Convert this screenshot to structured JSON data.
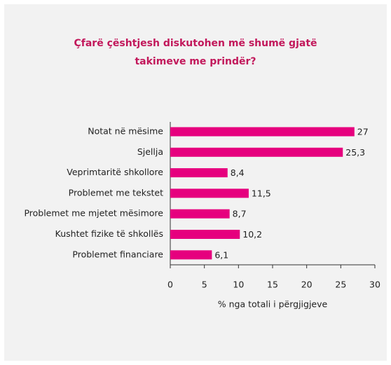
{
  "chart_data": {
    "type": "hbar",
    "title": [
      "Çfarë çështjesh diskutohen më shumë gjatë",
      "takimeve me prindër?"
    ],
    "categories": [
      "Notat në mësime",
      "Sjellja",
      "Veprimtaritë shkollore",
      "Problemet me tekstet",
      "Problemet me mjetet mësimore",
      "Kushtet fizike të shkollës",
      "Problemet financiare"
    ],
    "values": [
      27,
      25.3,
      8.4,
      11.5,
      8.7,
      10.2,
      6.1
    ],
    "value_labels": [
      "27",
      "25,3",
      "8,4",
      "11,5",
      "8,7",
      "10,2",
      "6,1"
    ],
    "color": "#e6007e",
    "xlabel": "% nga totali i përgjigjeve",
    "xlim": [
      0,
      30
    ],
    "xticks": [
      0,
      5,
      10,
      15,
      20,
      25,
      30
    ]
  }
}
